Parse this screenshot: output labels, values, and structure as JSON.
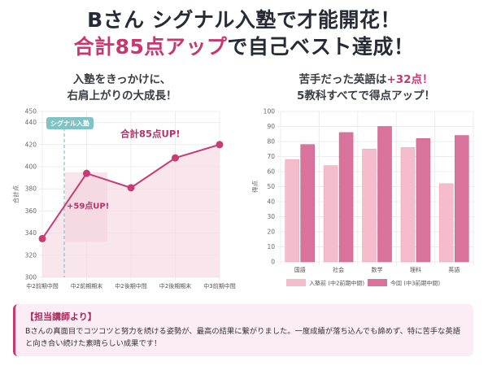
{
  "headline": {
    "line1": "Bさん シグナル入塾で才能開花！",
    "line2_accent": "合計85点アップ",
    "line2_rest": "で自己ベスト達成！"
  },
  "left_title": {
    "line1": "入塾をきっかけに、",
    "line2": "右肩上がりの大成長！"
  },
  "right_title": {
    "line1_pre": "苦手だった英語は",
    "line1_accent": "+32点！",
    "line2": "5教科すべてで得点アップ！"
  },
  "colors": {
    "accent": "#c8386e",
    "line": "#c93b73",
    "before_bar": "#f5bccb",
    "after_bar": "#d9739c",
    "badge": "#7ec4c4"
  },
  "chart_data": [
    {
      "type": "line",
      "title": "入塾をきっかけに、右肩上がりの大成長！",
      "xlabel": "",
      "ylabel": "合計点",
      "categories": [
        "中2前期中間",
        "中2前期期末",
        "中2後期中間",
        "中2後期期末",
        "中3前期中間"
      ],
      "series": [
        {
          "name": "合計点",
          "values": [
            335,
            394,
            381,
            408,
            420
          ]
        }
      ],
      "ylim": [
        300,
        450
      ],
      "yticks": [
        300,
        320,
        340,
        360,
        380,
        400,
        420,
        440,
        450
      ],
      "grid": true,
      "annotations": {
        "join_marker": "シグナル入塾",
        "jump_label": "+59点UP!",
        "total_label": "合計85点UP!"
      }
    },
    {
      "type": "bar",
      "title": "苦手だった英語は+32点！5教科すべてで得点アップ！",
      "xlabel": "",
      "ylabel": "得点",
      "categories": [
        "国語",
        "社会",
        "数学",
        "理科",
        "英語"
      ],
      "series": [
        {
          "name": "入塾前 (中2前期中間)",
          "values": [
            68,
            64,
            75,
            76,
            52
          ]
        },
        {
          "name": "今回 (中3前期中間)",
          "values": [
            78,
            86,
            90,
            82,
            84
          ]
        }
      ],
      "ylim": [
        0,
        100
      ],
      "yticks": [
        0,
        10,
        20,
        30,
        40,
        50,
        60,
        70,
        80,
        90,
        100
      ],
      "grid": true,
      "legend": "bottom"
    }
  ],
  "note": {
    "heading": "【担当講師より】",
    "body": "Bさんの真面目でコツコツと努力を続ける姿勢が、最高の結果に繋がりました。一度成績が落ち込んでも諦めず、特に苦手な英語と向き合い続けた素晴らしい成果です！"
  }
}
